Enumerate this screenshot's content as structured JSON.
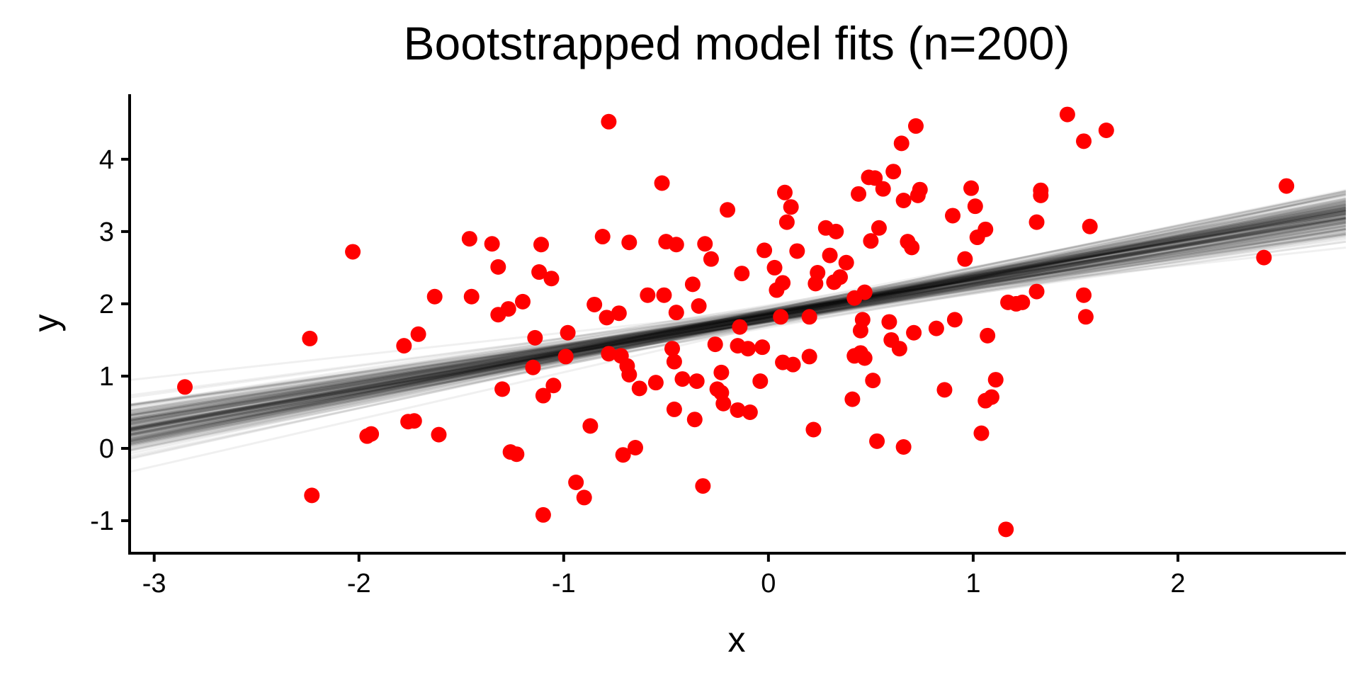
{
  "chart_data": {
    "type": "scatter",
    "title": "Bootstrapped model fits (n=200)",
    "xlabel": "x",
    "ylabel": "y",
    "xlim": [
      -3.12,
      2.82
    ],
    "ylim": [
      -1.45,
      4.9
    ],
    "xticks": [
      -3,
      -2,
      -1,
      0,
      1,
      2
    ],
    "xtick_labels": [
      "-3",
      "-2",
      "-1",
      "0",
      "1",
      "2"
    ],
    "yticks": [
      -1,
      0,
      1,
      2,
      3,
      4
    ],
    "ytick_labels": [
      "-1",
      "0",
      "1",
      "2",
      "3",
      "4"
    ],
    "grid": false,
    "legend": "none",
    "colors": {
      "points": "#ff0000",
      "fit_lines": "#000000"
    },
    "fit": {
      "intercept": 1.83,
      "slope": 0.5,
      "n_bootstrap": 200
    },
    "points": [
      {
        "x": -2.85,
        "y": 0.85
      },
      {
        "x": -2.24,
        "y": 1.52
      },
      {
        "x": -2.23,
        "y": -0.65
      },
      {
        "x": -2.03,
        "y": 2.72
      },
      {
        "x": -1.96,
        "y": 0.17
      },
      {
        "x": -1.94,
        "y": 0.2
      },
      {
        "x": -1.78,
        "y": 1.42
      },
      {
        "x": -1.76,
        "y": 0.37
      },
      {
        "x": -1.73,
        "y": 0.38
      },
      {
        "x": -1.71,
        "y": 1.58
      },
      {
        "x": -1.63,
        "y": 2.1
      },
      {
        "x": -1.61,
        "y": 0.19
      },
      {
        "x": -1.46,
        "y": 2.9
      },
      {
        "x": -1.45,
        "y": 2.1
      },
      {
        "x": -1.35,
        "y": 2.83
      },
      {
        "x": -1.32,
        "y": 2.51
      },
      {
        "x": -1.32,
        "y": 1.85
      },
      {
        "x": -1.3,
        "y": 0.82
      },
      {
        "x": -1.27,
        "y": 1.93
      },
      {
        "x": -1.26,
        "y": -0.05
      },
      {
        "x": -1.23,
        "y": -0.08
      },
      {
        "x": -1.2,
        "y": 2.03
      },
      {
        "x": -1.15,
        "y": 1.12
      },
      {
        "x": -1.14,
        "y": 1.53
      },
      {
        "x": -1.12,
        "y": 2.44
      },
      {
        "x": -1.11,
        "y": 2.82
      },
      {
        "x": -1.1,
        "y": 0.73
      },
      {
        "x": -1.1,
        "y": -0.92
      },
      {
        "x": -1.06,
        "y": 2.35
      },
      {
        "x": -1.05,
        "y": 0.87
      },
      {
        "x": -0.99,
        "y": 1.27
      },
      {
        "x": -0.98,
        "y": 1.6
      },
      {
        "x": -0.94,
        "y": -0.47
      },
      {
        "x": -0.9,
        "y": -0.68
      },
      {
        "x": -0.87,
        "y": 0.31
      },
      {
        "x": -0.85,
        "y": 1.99
      },
      {
        "x": -0.81,
        "y": 2.93
      },
      {
        "x": -0.79,
        "y": 1.81
      },
      {
        "x": -0.78,
        "y": 1.31
      },
      {
        "x": -0.78,
        "y": 4.52
      },
      {
        "x": -0.73,
        "y": 1.87
      },
      {
        "x": -0.72,
        "y": 1.28
      },
      {
        "x": -0.71,
        "y": -0.09
      },
      {
        "x": -0.69,
        "y": 1.14
      },
      {
        "x": -0.68,
        "y": 2.85
      },
      {
        "x": -0.68,
        "y": 1.02
      },
      {
        "x": -0.65,
        "y": 0.01
      },
      {
        "x": -0.63,
        "y": 0.83
      },
      {
        "x": -0.59,
        "y": 2.12
      },
      {
        "x": -0.55,
        "y": 0.91
      },
      {
        "x": -0.52,
        "y": 3.67
      },
      {
        "x": -0.51,
        "y": 2.12
      },
      {
        "x": -0.5,
        "y": 2.86
      },
      {
        "x": -0.47,
        "y": 1.38
      },
      {
        "x": -0.46,
        "y": 1.2
      },
      {
        "x": -0.46,
        "y": 0.54
      },
      {
        "x": -0.45,
        "y": 2.82
      },
      {
        "x": -0.45,
        "y": 1.88
      },
      {
        "x": -0.42,
        "y": 0.96
      },
      {
        "x": -0.37,
        "y": 2.27
      },
      {
        "x": -0.36,
        "y": 0.4
      },
      {
        "x": -0.35,
        "y": 0.93
      },
      {
        "x": -0.34,
        "y": 1.97
      },
      {
        "x": -0.32,
        "y": -0.52
      },
      {
        "x": -0.31,
        "y": 2.83
      },
      {
        "x": -0.28,
        "y": 2.62
      },
      {
        "x": -0.26,
        "y": 1.44
      },
      {
        "x": -0.25,
        "y": 0.82
      },
      {
        "x": -0.23,
        "y": 0.77
      },
      {
        "x": -0.23,
        "y": 1.05
      },
      {
        "x": -0.22,
        "y": 0.62
      },
      {
        "x": -0.2,
        "y": 3.3
      },
      {
        "x": -0.15,
        "y": 0.53
      },
      {
        "x": -0.15,
        "y": 1.42
      },
      {
        "x": -0.14,
        "y": 1.68
      },
      {
        "x": -0.13,
        "y": 2.42
      },
      {
        "x": -0.1,
        "y": 1.38
      },
      {
        "x": -0.09,
        "y": 0.5
      },
      {
        "x": -0.04,
        "y": 0.93
      },
      {
        "x": -0.03,
        "y": 1.4
      },
      {
        "x": -0.02,
        "y": 2.74
      },
      {
        "x": 0.03,
        "y": 2.5
      },
      {
        "x": 0.04,
        "y": 2.19
      },
      {
        "x": 0.06,
        "y": 1.82
      },
      {
        "x": 0.07,
        "y": 2.29
      },
      {
        "x": 0.07,
        "y": 1.19
      },
      {
        "x": 0.08,
        "y": 3.54
      },
      {
        "x": 0.09,
        "y": 3.13
      },
      {
        "x": 0.11,
        "y": 3.34
      },
      {
        "x": 0.12,
        "y": 1.16
      },
      {
        "x": 0.14,
        "y": 2.73
      },
      {
        "x": 0.2,
        "y": 1.27
      },
      {
        "x": 0.2,
        "y": 1.82
      },
      {
        "x": 0.22,
        "y": 0.26
      },
      {
        "x": 0.23,
        "y": 2.28
      },
      {
        "x": 0.24,
        "y": 2.43
      },
      {
        "x": 0.28,
        "y": 3.05
      },
      {
        "x": 0.3,
        "y": 2.67
      },
      {
        "x": 0.32,
        "y": 2.3
      },
      {
        "x": 0.33,
        "y": 3.0
      },
      {
        "x": 0.35,
        "y": 2.37
      },
      {
        "x": 0.38,
        "y": 2.57
      },
      {
        "x": 0.41,
        "y": 0.68
      },
      {
        "x": 0.42,
        "y": 1.28
      },
      {
        "x": 0.42,
        "y": 2.08
      },
      {
        "x": 0.44,
        "y": 3.52
      },
      {
        "x": 0.45,
        "y": 1.32
      },
      {
        "x": 0.45,
        "y": 1.63
      },
      {
        "x": 0.46,
        "y": 1.78
      },
      {
        "x": 0.47,
        "y": 2.16
      },
      {
        "x": 0.47,
        "y": 1.25
      },
      {
        "x": 0.49,
        "y": 3.75
      },
      {
        "x": 0.5,
        "y": 2.87
      },
      {
        "x": 0.51,
        "y": 0.94
      },
      {
        "x": 0.52,
        "y": 3.74
      },
      {
        "x": 0.53,
        "y": 0.1
      },
      {
        "x": 0.54,
        "y": 3.05
      },
      {
        "x": 0.56,
        "y": 3.59
      },
      {
        "x": 0.59,
        "y": 1.75
      },
      {
        "x": 0.6,
        "y": 1.5
      },
      {
        "x": 0.61,
        "y": 3.83
      },
      {
        "x": 0.64,
        "y": 1.38
      },
      {
        "x": 0.65,
        "y": 4.22
      },
      {
        "x": 0.66,
        "y": 3.43
      },
      {
        "x": 0.66,
        "y": 0.02
      },
      {
        "x": 0.68,
        "y": 2.86
      },
      {
        "x": 0.7,
        "y": 2.78
      },
      {
        "x": 0.71,
        "y": 1.6
      },
      {
        "x": 0.72,
        "y": 4.46
      },
      {
        "x": 0.73,
        "y": 3.5
      },
      {
        "x": 0.74,
        "y": 3.58
      },
      {
        "x": 0.82,
        "y": 1.66
      },
      {
        "x": 0.86,
        "y": 0.81
      },
      {
        "x": 0.9,
        "y": 3.22
      },
      {
        "x": 0.91,
        "y": 1.78
      },
      {
        "x": 0.96,
        "y": 2.62
      },
      {
        "x": 0.99,
        "y": 3.6
      },
      {
        "x": 1.01,
        "y": 3.35
      },
      {
        "x": 1.02,
        "y": 2.92
      },
      {
        "x": 1.04,
        "y": 0.21
      },
      {
        "x": 1.06,
        "y": 3.03
      },
      {
        "x": 1.06,
        "y": 0.66
      },
      {
        "x": 1.07,
        "y": 1.56
      },
      {
        "x": 1.09,
        "y": 0.71
      },
      {
        "x": 1.11,
        "y": 0.95
      },
      {
        "x": 1.16,
        "y": -1.12
      },
      {
        "x": 1.17,
        "y": 2.02
      },
      {
        "x": 1.21,
        "y": 2.0
      },
      {
        "x": 1.24,
        "y": 2.02
      },
      {
        "x": 1.31,
        "y": 3.13
      },
      {
        "x": 1.31,
        "y": 2.17
      },
      {
        "x": 1.33,
        "y": 3.57
      },
      {
        "x": 1.33,
        "y": 3.5
      },
      {
        "x": 1.46,
        "y": 4.62
      },
      {
        "x": 1.54,
        "y": 2.12
      },
      {
        "x": 1.54,
        "y": 4.25
      },
      {
        "x": 1.55,
        "y": 1.82
      },
      {
        "x": 1.57,
        "y": 3.07
      },
      {
        "x": 1.65,
        "y": 4.4
      },
      {
        "x": 2.42,
        "y": 2.64
      },
      {
        "x": 2.53,
        "y": 3.63
      }
    ]
  }
}
